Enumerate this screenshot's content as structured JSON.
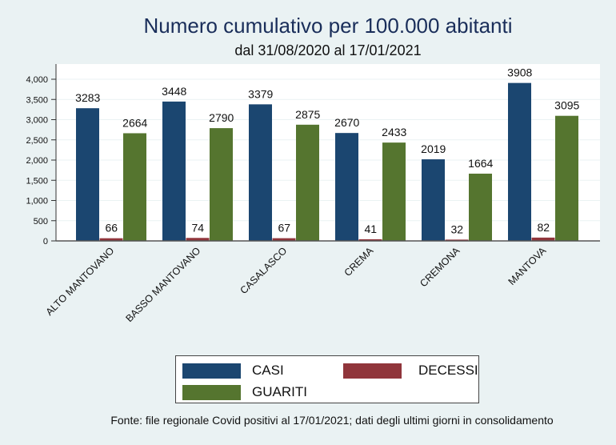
{
  "chart_data": {
    "type": "bar",
    "title": "Numero cumulativo per 100.000 abitanti",
    "subtitle": "dal 31/08/2020 al 17/01/2021",
    "xlabel": "",
    "ylabel": "",
    "ylim": [
      0,
      4000
    ],
    "yticks": [
      0,
      500,
      1000,
      1500,
      2000,
      2500,
      3000,
      3500,
      4000
    ],
    "ytick_labels": [
      "0",
      "500",
      "1,000",
      "1,500",
      "2,000",
      "2,500",
      "3,000",
      "3,500",
      "4,000"
    ],
    "grid": true,
    "categories": [
      "ALTO MANTOVANO",
      "BASSO MANTOVANO",
      "CASALASCO",
      "CREMA",
      "CREMONA",
      "MANTOVA"
    ],
    "series": [
      {
        "name": "CASI",
        "color": "#1b4670",
        "values": [
          3283,
          3448,
          3379,
          2670,
          2019,
          3908
        ]
      },
      {
        "name": "DECESSI",
        "color": "#90353b",
        "values": [
          66,
          74,
          67,
          41,
          32,
          82
        ]
      },
      {
        "name": "GUARITI",
        "color": "#55752f",
        "values": [
          2664,
          2790,
          2875,
          2433,
          1664,
          3095
        ]
      }
    ],
    "legend_position": "bottom",
    "source_note": "Fonte: file regionale Covid positivi al 17/01/2021; dati degli ultimi giorni in consolidamento"
  }
}
